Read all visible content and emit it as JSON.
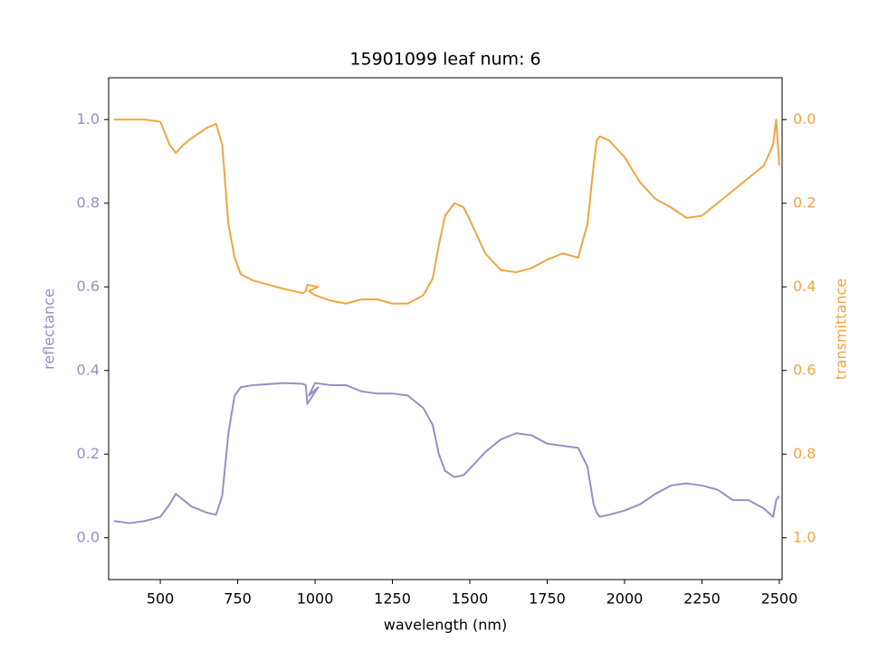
{
  "chart_data": {
    "type": "line",
    "title": "15901099 leaf num: 6",
    "xlabel": "wavelength (nm)",
    "ylabel": "reflectance",
    "y2label": "transmittance",
    "x": [
      350,
      400,
      450,
      500,
      530,
      550,
      575,
      600,
      650,
      680,
      700,
      720,
      740,
      760,
      800,
      900,
      960,
      970,
      975,
      1010,
      980,
      1000,
      1050,
      1100,
      1150,
      1200,
      1250,
      1300,
      1350,
      1380,
      1400,
      1420,
      1450,
      1480,
      1500,
      1550,
      1600,
      1650,
      1700,
      1750,
      1800,
      1850,
      1880,
      1900,
      1910,
      1920,
      1950,
      2000,
      2050,
      2100,
      2150,
      2200,
      2250,
      2300,
      2350,
      2400,
      2450,
      2480,
      2490,
      2500
    ],
    "series": [
      {
        "name": "reflectance",
        "color": "#9590c4",
        "axis": "y",
        "values": [
          0.04,
          0.035,
          0.04,
          0.05,
          0.08,
          0.105,
          0.09,
          0.075,
          0.06,
          0.055,
          0.1,
          0.25,
          0.34,
          0.36,
          0.365,
          0.37,
          0.368,
          0.365,
          0.32,
          0.36,
          0.34,
          0.37,
          0.365,
          0.365,
          0.35,
          0.345,
          0.345,
          0.34,
          0.31,
          0.27,
          0.2,
          0.16,
          0.145,
          0.15,
          0.165,
          0.205,
          0.235,
          0.25,
          0.245,
          0.225,
          0.22,
          0.215,
          0.17,
          0.08,
          0.06,
          0.05,
          0.055,
          0.065,
          0.08,
          0.105,
          0.125,
          0.13,
          0.125,
          0.115,
          0.09,
          0.09,
          0.07,
          0.05,
          0.09,
          0.1
        ]
      },
      {
        "name": "transmittance",
        "color": "#f0a540",
        "axis": "y2",
        "values": [
          0.0,
          0.0,
          0.0,
          0.005,
          0.06,
          0.08,
          0.06,
          0.045,
          0.02,
          0.01,
          0.06,
          0.25,
          0.33,
          0.37,
          0.385,
          0.405,
          0.415,
          0.41,
          0.395,
          0.4,
          0.41,
          0.42,
          0.433,
          0.44,
          0.43,
          0.43,
          0.44,
          0.44,
          0.42,
          0.38,
          0.3,
          0.23,
          0.2,
          0.21,
          0.24,
          0.32,
          0.36,
          0.365,
          0.355,
          0.335,
          0.32,
          0.33,
          0.25,
          0.11,
          0.05,
          0.04,
          0.05,
          0.09,
          0.15,
          0.19,
          0.21,
          0.235,
          0.23,
          0.2,
          0.17,
          0.14,
          0.11,
          0.06,
          0.0,
          0.11
        ]
      }
    ],
    "xlim": [
      333,
      2509
    ],
    "xticks": [
      500,
      750,
      1000,
      1250,
      1500,
      1750,
      2000,
      2250,
      2500
    ],
    "ylim": [
      -0.1,
      1.1
    ],
    "yticks": [
      {
        "value": 0,
        "label": "0.0"
      },
      0.2,
      0.4,
      0.6,
      0.8,
      {
        "value": 1,
        "label": "1.0"
      }
    ],
    "y2lim": [
      1.1,
      -0.1
    ],
    "y2ticks": [
      {
        "value": 0,
        "label": "0.0"
      },
      0.2,
      0.4,
      0.6,
      0.8,
      {
        "value": 1,
        "label": "1.0"
      }
    ]
  }
}
